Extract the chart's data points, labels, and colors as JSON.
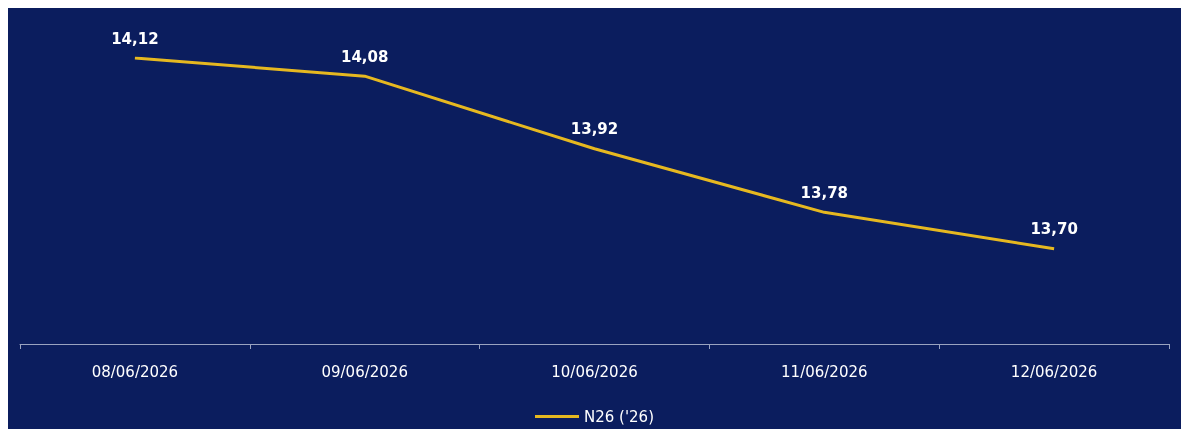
{
  "chart_data": {
    "type": "line",
    "categories": [
      "08/06/2026",
      "09/06/2026",
      "10/06/2026",
      "11/06/2026",
      "12/06/2026"
    ],
    "series": [
      {
        "name": "N26 ('26)",
        "color": "#e6b820",
        "values": [
          14.12,
          14.08,
          13.92,
          13.78,
          13.7
        ],
        "value_labels": [
          "14,12",
          "14,08",
          "13,92",
          "13,78",
          "13,70"
        ]
      }
    ],
    "legend": "bottom",
    "grid": false,
    "marker": "none"
  }
}
